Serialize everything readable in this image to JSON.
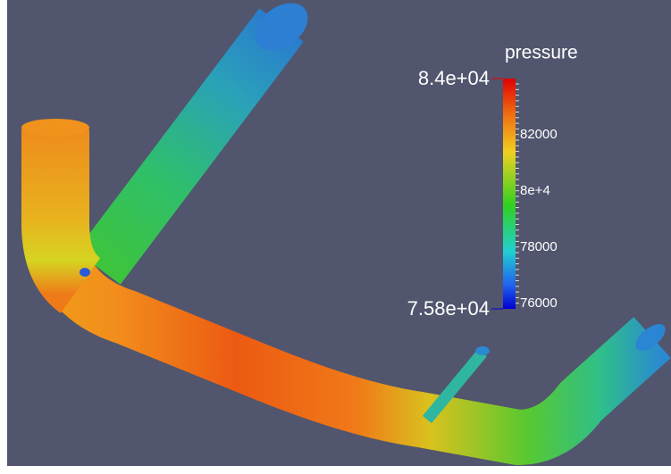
{
  "colorbar": {
    "title": "pressure",
    "max_label": "8.4e+04",
    "min_label": "7.58e+04",
    "ticks": [
      "82000",
      "8e+4",
      "78000",
      "76000"
    ]
  }
}
